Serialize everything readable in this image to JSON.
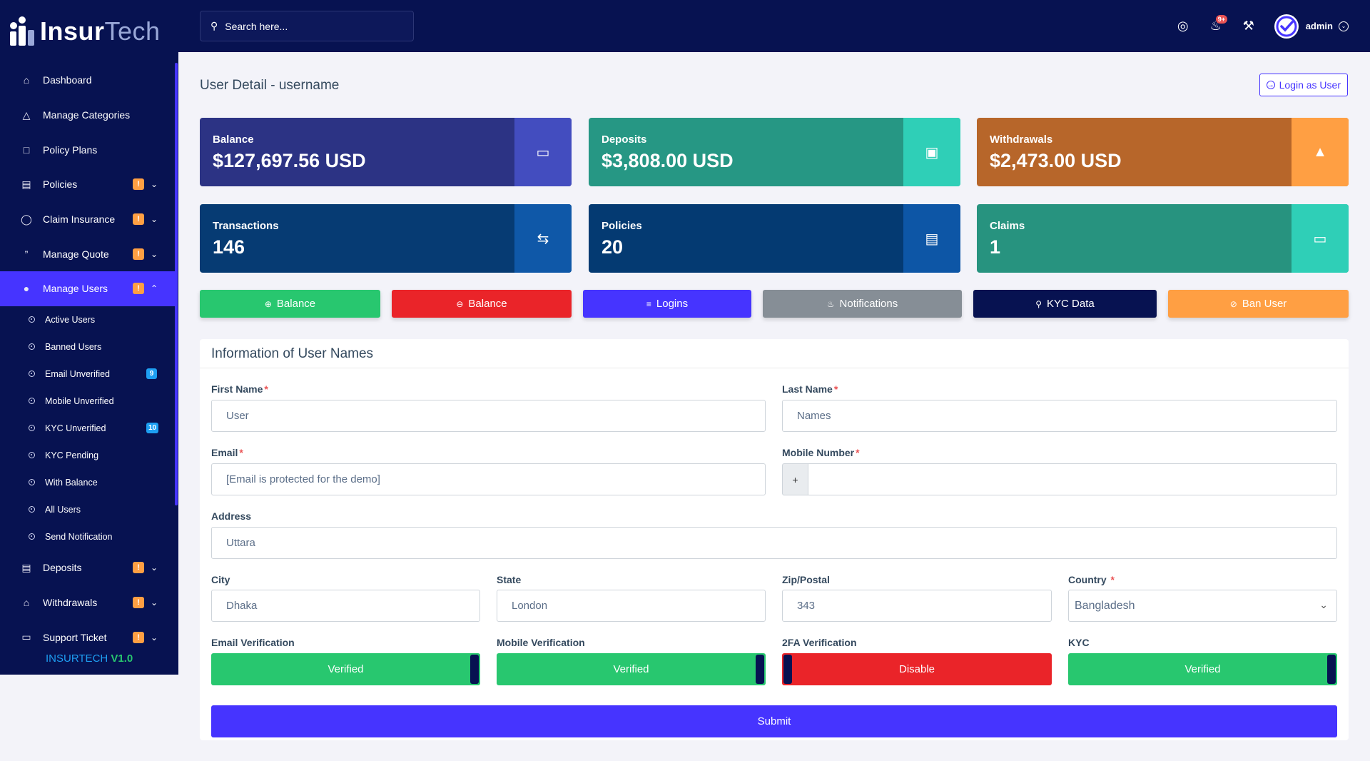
{
  "app": {
    "brand_part1": "Insur",
    "brand_part2": "Tech",
    "version_prefix": "INSURTECH ",
    "version": "V1.0"
  },
  "search": {
    "placeholder": "Search here..."
  },
  "header": {
    "notif_count": "9+",
    "admin_name": "admin"
  },
  "sidebar": {
    "items": [
      {
        "label": "Dashboard",
        "icon": "home-icon"
      },
      {
        "label": "Manage Categories",
        "icon": "shapes-icon"
      },
      {
        "label": "Policy Plans",
        "icon": "chart-bar-icon"
      },
      {
        "label": "Policies",
        "icon": "file-icon",
        "badge": "!"
      },
      {
        "label": "Claim Insurance",
        "icon": "shield-icon",
        "badge": "!"
      },
      {
        "label": "Manage Quote",
        "icon": "quote-icon",
        "badge": "!"
      },
      {
        "label": "Manage Users",
        "icon": "users-icon",
        "badge": "!"
      }
    ],
    "sub_items": [
      {
        "label": "Active Users"
      },
      {
        "label": "Banned Users"
      },
      {
        "label": "Email Unverified",
        "badge": "9"
      },
      {
        "label": "Mobile Unverified"
      },
      {
        "label": "KYC Unverified",
        "badge": "10"
      },
      {
        "label": "KYC Pending"
      },
      {
        "label": "With Balance"
      },
      {
        "label": "All Users"
      },
      {
        "label": "Send Notification"
      }
    ],
    "bottom_items": [
      {
        "label": "Deposits",
        "icon": "file-dollar-icon",
        "badge": "!"
      },
      {
        "label": "Withdrawals",
        "icon": "bank-icon",
        "badge": "!"
      },
      {
        "label": "Support Ticket",
        "icon": "ticket-icon",
        "badge": "!"
      }
    ]
  },
  "page": {
    "title": "User Detail - username",
    "login_as": "Login as User"
  },
  "stats": [
    {
      "label": "Balance",
      "value": "$127,697.56 USD",
      "icon": "money-icon",
      "color": "#2c3384",
      "side": "#434dbf"
    },
    {
      "label": "Deposits",
      "value": "$3,808.00 USD",
      "icon": "wallet-icon",
      "color": "#269784",
      "side": "#2fcfb7"
    },
    {
      "label": "Withdrawals",
      "value": "$2,473.00 USD",
      "icon": "bank-icon",
      "color": "#b7662a",
      "side": "#ff9f43"
    },
    {
      "label": "Transactions",
      "value": "146",
      "icon": "exchange-icon",
      "color": "#063b73",
      "side": "#0f58a8"
    },
    {
      "label": "Policies",
      "value": "20",
      "icon": "file-dollar-icon",
      "color": "#043a72",
      "side": "#0d56a6"
    },
    {
      "label": "Claims",
      "value": "1",
      "icon": "money-bill-icon",
      "color": "#27937f",
      "side": "#2fcfb7"
    }
  ],
  "actions": [
    {
      "label": "Balance",
      "icon": "plus-circle-icon",
      "color": "#28c76f"
    },
    {
      "label": "Balance",
      "icon": "minus-circle-icon",
      "color": "#ea2429"
    },
    {
      "label": "Logins",
      "icon": "list-icon",
      "color": "#4634ff"
    },
    {
      "label": "Notifications",
      "icon": "bell-icon",
      "color": "#868e96"
    },
    {
      "label": "KYC Data",
      "icon": "user-key-icon",
      "color": "#071251"
    },
    {
      "label": "Ban User",
      "icon": "ban-icon",
      "color": "#ff9f43"
    }
  ],
  "form": {
    "title": "Information of User Names",
    "first_name_label": "First Name",
    "first_name": "User",
    "last_name_label": "Last Name",
    "last_name": "Names",
    "email_label": "Email",
    "email": "[Email is protected for the demo]",
    "mobile_label": "Mobile Number",
    "mobile_prefix": "+",
    "mobile": "",
    "address_label": "Address",
    "address": "Uttara",
    "city_label": "City",
    "city": "Dhaka",
    "state_label": "State",
    "state": "London",
    "zip_label": "Zip/Postal",
    "zip": "343",
    "country_label": "Country",
    "country": "Bangladesh",
    "email_verif_label": "Email Verification",
    "email_verif": "Verified",
    "mobile_verif_label": "Mobile Verification",
    "mobile_verif": "Verified",
    "twofa_label": "2FA Verification",
    "twofa": "Disable",
    "kyc_label": "KYC",
    "kyc": "Verified",
    "submit": "Submit"
  }
}
